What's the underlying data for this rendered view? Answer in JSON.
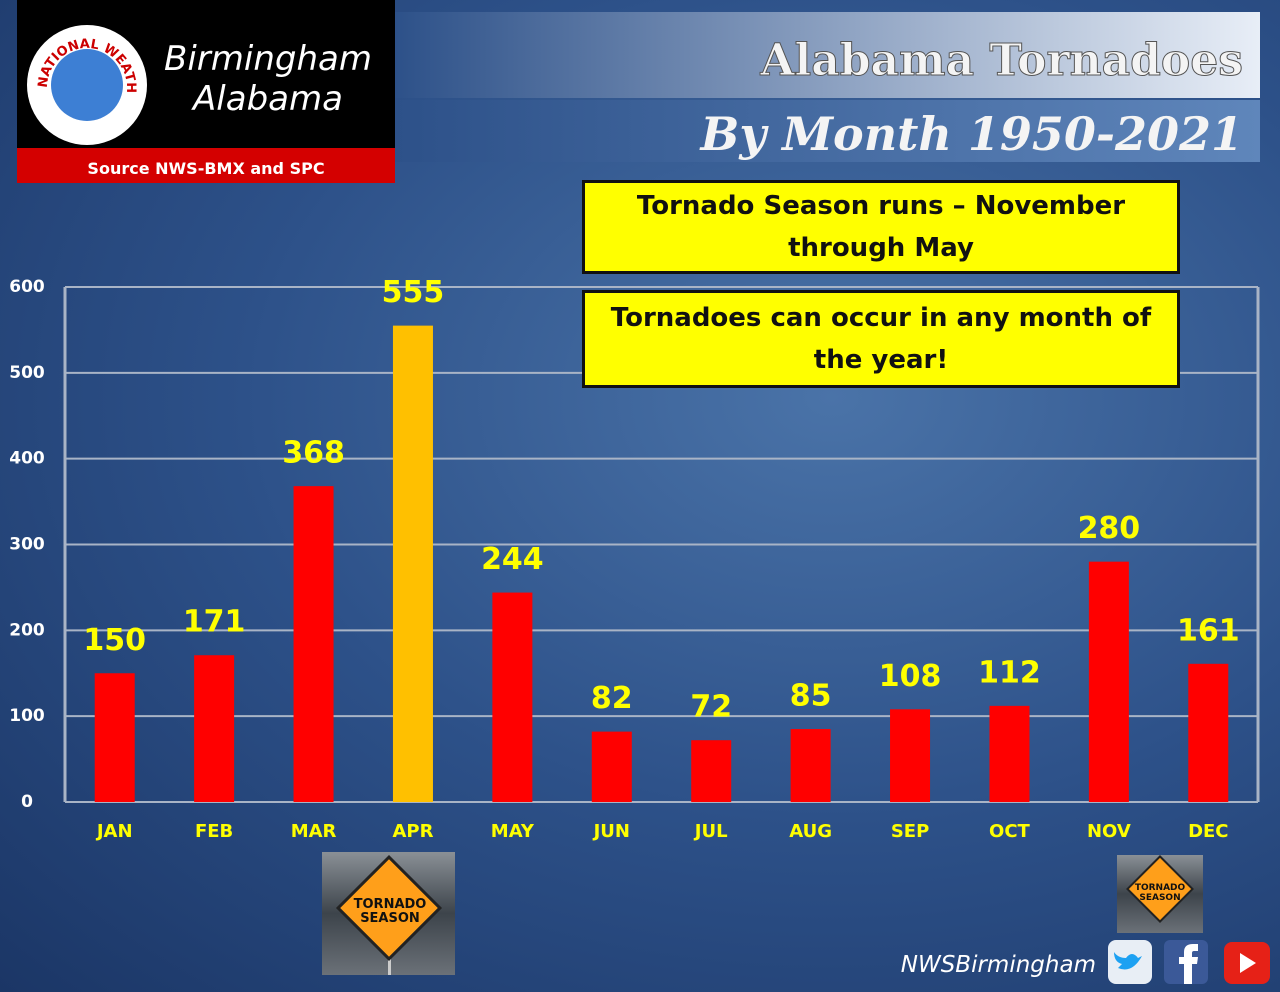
{
  "branding": {
    "office": "Birmingham",
    "state": "Alabama",
    "source": "Source NWS-BMX and SPC",
    "logo_ring": "NATIONAL WEATHER SERVICE",
    "handle": "NWSBirmingham"
  },
  "signs": [
    [
      "TORNADO",
      "SEASON"
    ],
    [
      "TORNADO",
      "SEASON"
    ]
  ],
  "chart_data": {
    "type": "bar",
    "title": "Alabama Tornadoes",
    "subtitle": "By Month 1950-2021",
    "annotations": [
      "Tornado Season runs – November through May",
      "Tornadoes can occur in any month of the year!"
    ],
    "categories": [
      "JAN",
      "FEB",
      "MAR",
      "APR",
      "MAY",
      "JUN",
      "JUL",
      "AUG",
      "SEP",
      "OCT",
      "NOV",
      "DEC"
    ],
    "values": [
      150,
      171,
      368,
      555,
      244,
      82,
      72,
      85,
      108,
      112,
      280,
      161
    ],
    "colors": [
      "#ff0000",
      "#ff0000",
      "#ff0000",
      "#ffc000",
      "#ff0000",
      "#ff0000",
      "#ff0000",
      "#ff0000",
      "#ff0000",
      "#ff0000",
      "#ff0000",
      "#ff0000"
    ],
    "ylim": [
      0,
      600
    ],
    "yticks": [
      0,
      100,
      200,
      300,
      400,
      500,
      600
    ],
    "grid": true
  }
}
